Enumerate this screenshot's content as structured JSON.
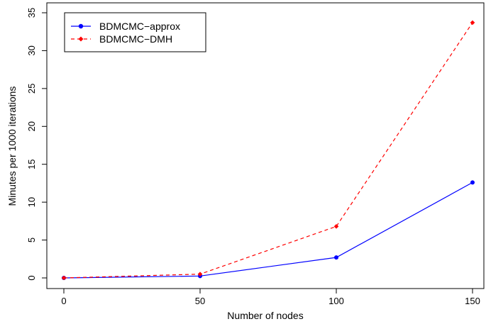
{
  "chart_data": {
    "type": "line",
    "title": "",
    "xlabel": "Number of nodes",
    "ylabel": "Minutes per 1000 iterations",
    "x": [
      0,
      50,
      100,
      150
    ],
    "xlim": [
      0,
      150
    ],
    "ylim": [
      0,
      35
    ],
    "x_ticks": [
      "0",
      "50",
      "100",
      "150"
    ],
    "y_ticks": [
      "0",
      "5",
      "10",
      "15",
      "20",
      "25",
      "30",
      "35"
    ],
    "grid": false,
    "legend_position": "top-left",
    "series": [
      {
        "name": "BDMCMC−approx",
        "values": [
          0.0,
          0.25,
          2.7,
          12.6
        ],
        "color": "#0000ff",
        "line_style": "solid",
        "marker": "circle"
      },
      {
        "name": "BDMCMC−DMH",
        "values": [
          0.0,
          0.5,
          6.8,
          33.7
        ],
        "color": "#ff0000",
        "line_style": "dashed",
        "marker": "diamond"
      }
    ]
  }
}
